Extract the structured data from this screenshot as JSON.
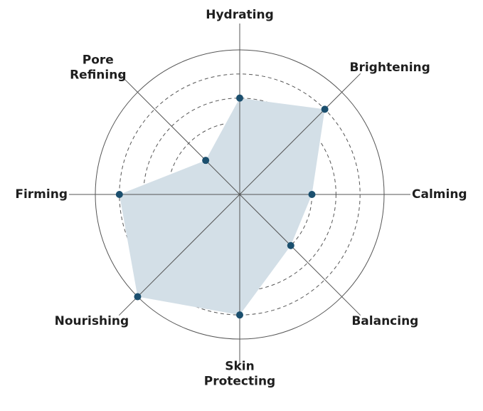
{
  "chart_data": {
    "type": "radar",
    "categories": [
      "Hydrating",
      "Brightening",
      "Calming",
      "Balancing",
      "Skin Protecting",
      "Nourishing",
      "Firming",
      "Pore Refining"
    ],
    "values": [
      4,
      5,
      3,
      3,
      5,
      6,
      5,
      2
    ],
    "rlim": [
      0,
      6
    ],
    "rticks": [
      2,
      3,
      4,
      5,
      6
    ],
    "color": "#1b4f6e",
    "fill": "#d3dfe7"
  }
}
